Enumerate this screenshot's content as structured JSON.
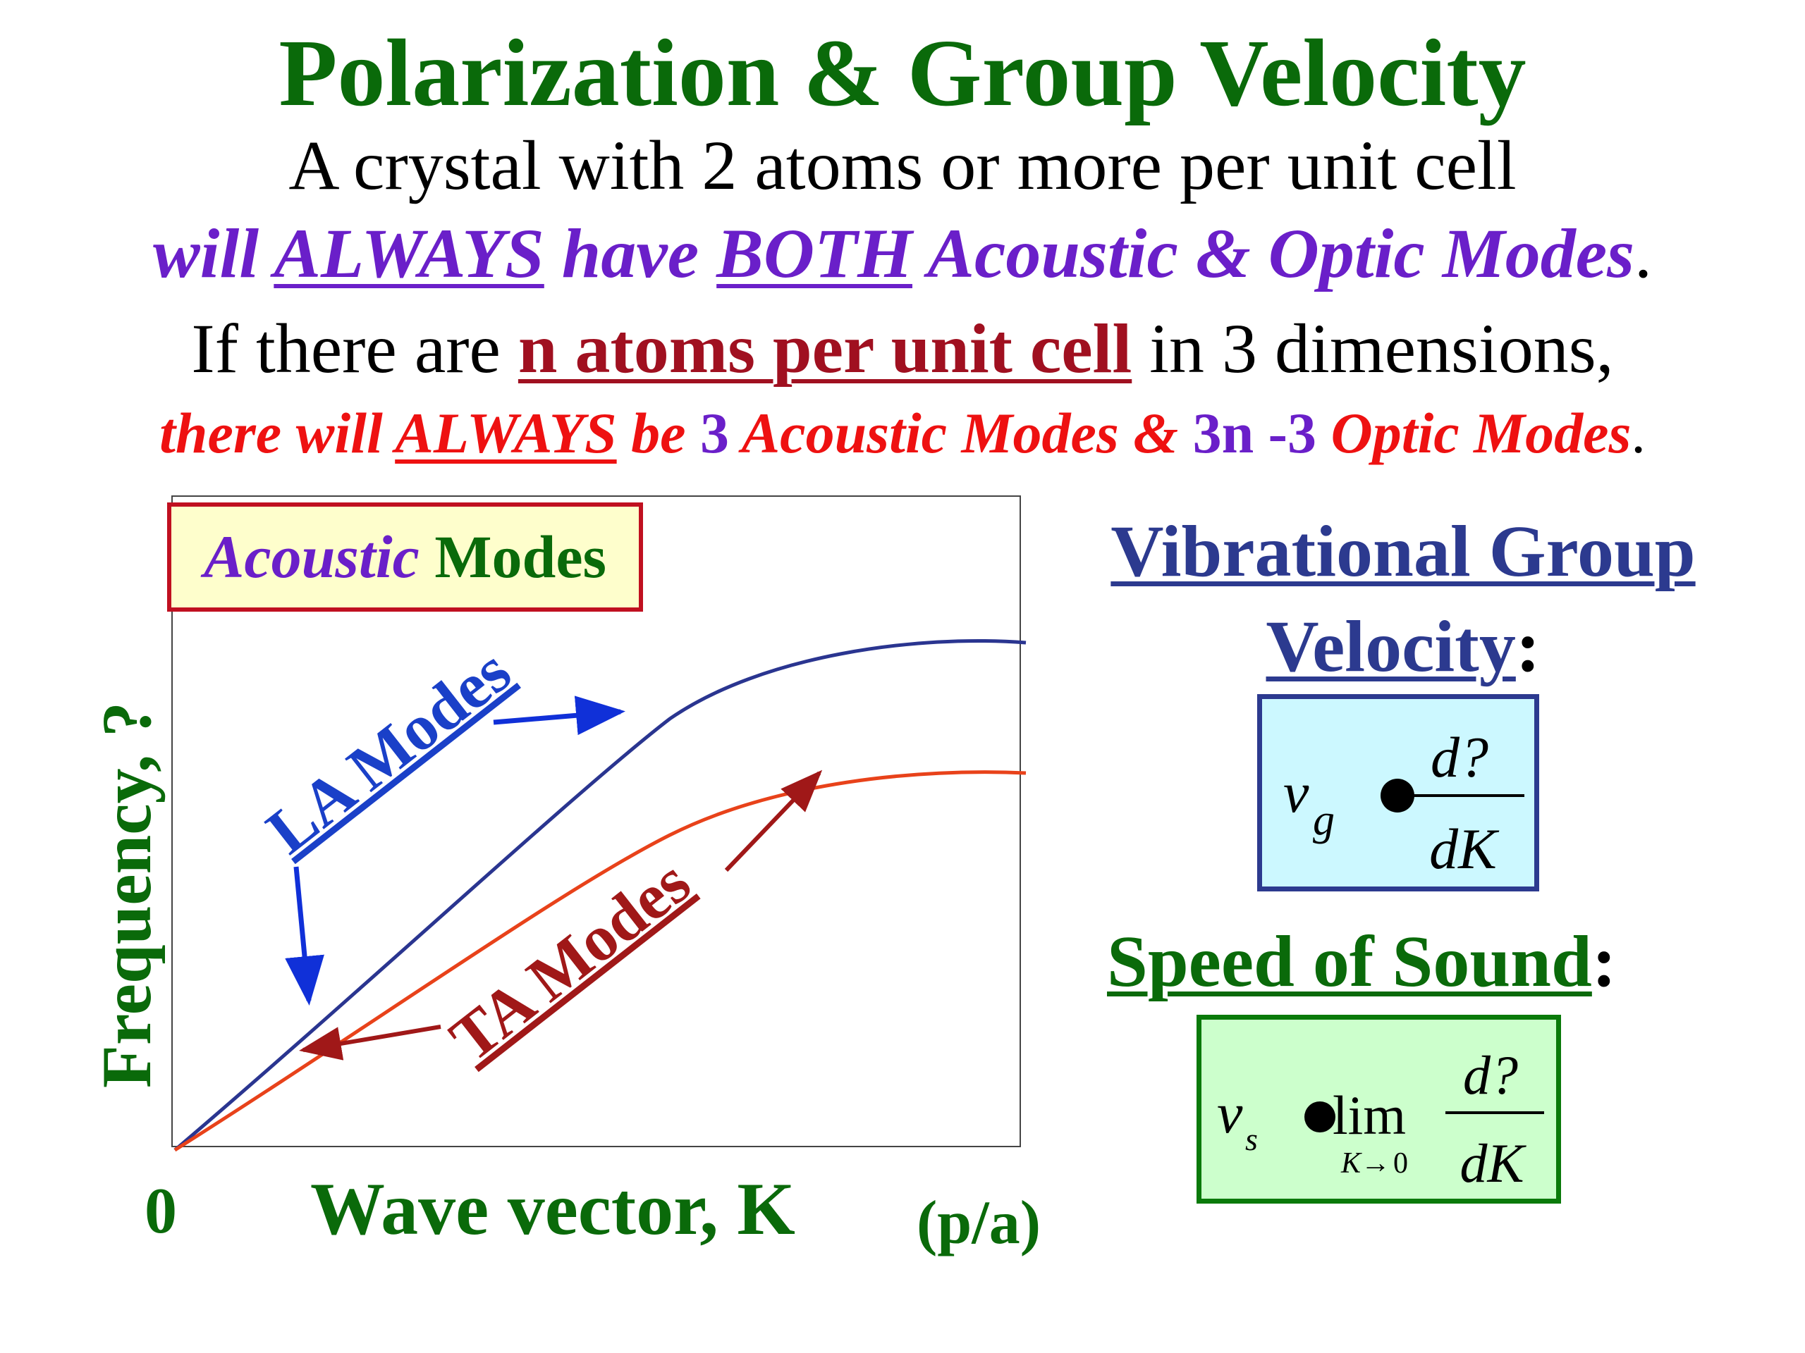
{
  "title": "Polarization & Group Velocity",
  "intro": {
    "line1": "A crystal with 2 atoms or more per unit cell",
    "line2": {
      "will": "will ",
      "always": "ALWAYS",
      "have": " have ",
      "both": "BOTH",
      "rest": " Acoustic & Optic Modes",
      "period": "."
    },
    "line3": {
      "pre": "If there are ",
      "highlight": "n atoms per unit cell",
      "post": " in 3 dimensions,"
    },
    "line4": {
      "there_will": "there will ",
      "always": "ALWAYS",
      "be": " be ",
      "three": "3",
      "acoustic_modes": " Acoustic Modes & ",
      "three_n": "3n -3",
      "optic_modes": " Optic Modes",
      "period": "."
    }
  },
  "graph": {
    "legend_acoustic": "Acoustic",
    "legend_modes": " Modes",
    "y_label": "Frequency, ?",
    "x_origin": "0",
    "x_label": "Wave vector, K",
    "x_unit": "(p/a)",
    "la_label": "LA Modes",
    "ta_label": "TA Modes",
    "colors": {
      "la_curve": "#2a3590",
      "ta_curve": "#e8421a",
      "la_arrow": "#1030d8",
      "ta_arrow": "#a01818"
    }
  },
  "group_velocity": {
    "title_line1": "Vibrational Group",
    "title_line2": "Velocity",
    "colon": ":",
    "formula": {
      "v": "v",
      "sub": "g",
      "num": "d?",
      "den": "dK"
    }
  },
  "speed_of_sound": {
    "title": "Speed of Sound",
    "colon": ":",
    "formula": {
      "v": "v",
      "sub": "s",
      "lim": "lim",
      "lim_sub": "K",
      "lim_arrow": "→",
      "lim_zero": "0",
      "num": "d?",
      "den": "dK"
    }
  }
}
